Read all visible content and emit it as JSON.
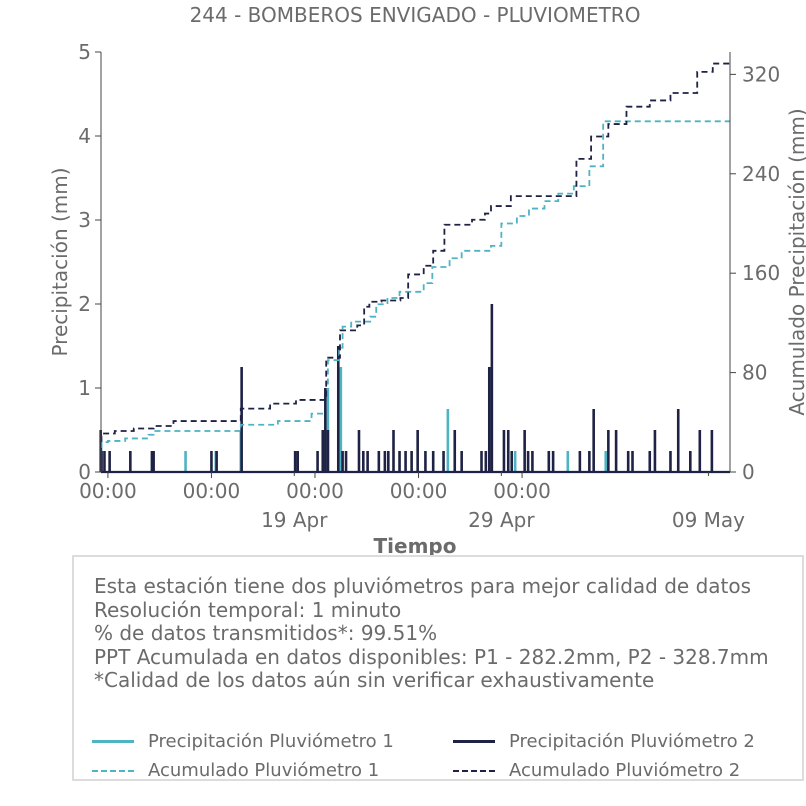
{
  "chart_data": {
    "type": "bar",
    "title": "244 - BOMBEROS ENVIGADO - PLUVIOMETRO",
    "xlabel": "Tiempo",
    "ylabel": "Precipitación (mm)",
    "y2label": "Acumulado Precipitación (mm)",
    "ylim": [
      0,
      5
    ],
    "y2lim": [
      0,
      338
    ],
    "yticks": [
      0,
      1,
      2,
      3,
      4,
      5
    ],
    "y2ticks": [
      0,
      80,
      160,
      240,
      320
    ],
    "xlim": [
      "2024-04-09T16:00",
      "2024-05-10T01:00"
    ],
    "xticks_major": [
      {
        "x": "2024-04-10T00:00",
        "label": "00:00"
      },
      {
        "x": "2024-04-15T00:00",
        "label": "00:00"
      },
      {
        "x": "2024-04-20T00:00",
        "label": "00:00"
      },
      {
        "x": "2024-04-25T00:00",
        "label": "00:00"
      },
      {
        "x": "2024-04-30T00:00",
        "label": "00:00"
      }
    ],
    "xticks_minor": [
      {
        "x": "2024-04-19T00:00",
        "label": "19 Apr"
      },
      {
        "x": "2024-04-29T00:00",
        "label": "29 Apr"
      },
      {
        "x": "2024-05-09T00:00",
        "label": "09 May"
      }
    ],
    "legend_position": "bottom",
    "grid": false,
    "colors": {
      "p1": "#4eb3c2",
      "p2": "#1f2244"
    },
    "series": [
      {
        "name": "Precipitación Pluviómetro 1",
        "kind": "bar",
        "points": [
          [
            "2024-04-09T16:10",
            0.4
          ],
          [
            "2024-04-13T18:00",
            0.25
          ],
          [
            "2024-04-15T05:00",
            0.25
          ],
          [
            "2024-04-16T10:00",
            0.5
          ],
          [
            "2024-04-20T15:00",
            1.0
          ],
          [
            "2024-04-21T06:00",
            1.25
          ],
          [
            "2024-04-26T10:00",
            0.75
          ],
          [
            "2024-04-29T16:00",
            0.25
          ],
          [
            "2024-05-02T05:00",
            0.25
          ],
          [
            "2024-05-04T01:00",
            0.25
          ]
        ]
      },
      {
        "name": "Precipitación Pluviómetro 2",
        "kind": "bar",
        "points": [
          [
            "2024-04-09T15:40",
            0.5
          ],
          [
            "2024-04-09T16:40",
            0.25
          ],
          [
            "2024-04-09T20:00",
            0.25
          ],
          [
            "2024-04-10T02:00",
            0.25
          ],
          [
            "2024-04-11T02:00",
            0.25
          ],
          [
            "2024-04-12T03:00",
            0.25
          ],
          [
            "2024-04-12T05:00",
            0.25
          ],
          [
            "2024-04-15T00:00",
            0.25
          ],
          [
            "2024-04-15T06:00",
            0.25
          ],
          [
            "2024-04-16T11:00",
            1.25
          ],
          [
            "2024-04-19T01:00",
            0.25
          ],
          [
            "2024-04-19T04:00",
            0.25
          ],
          [
            "2024-04-20T03:00",
            0.25
          ],
          [
            "2024-04-20T09:00",
            0.5
          ],
          [
            "2024-04-20T12:00",
            1.0
          ],
          [
            "2024-04-20T15:00",
            0.5
          ],
          [
            "2024-04-21T03:00",
            1.5
          ],
          [
            "2024-04-21T08:00",
            0.25
          ],
          [
            "2024-04-21T12:00",
            0.25
          ],
          [
            "2024-04-22T03:00",
            0.5
          ],
          [
            "2024-04-22T08:00",
            0.25
          ],
          [
            "2024-04-22T13:00",
            0.25
          ],
          [
            "2024-04-23T02:00",
            0.25
          ],
          [
            "2024-04-23T09:00",
            0.25
          ],
          [
            "2024-04-23T13:00",
            0.25
          ],
          [
            "2024-04-23T19:00",
            0.5
          ],
          [
            "2024-04-24T02:00",
            0.25
          ],
          [
            "2024-04-24T09:00",
            0.25
          ],
          [
            "2024-04-24T16:00",
            0.25
          ],
          [
            "2024-04-24T23:00",
            0.5
          ],
          [
            "2024-04-25T08:00",
            0.25
          ],
          [
            "2024-04-25T17:00",
            0.25
          ],
          [
            "2024-04-26T05:00",
            0.25
          ],
          [
            "2024-04-26T18:00",
            0.5
          ],
          [
            "2024-04-27T02:00",
            0.25
          ],
          [
            "2024-04-28T01:00",
            0.25
          ],
          [
            "2024-04-28T06:00",
            0.25
          ],
          [
            "2024-04-28T10:00",
            1.25
          ],
          [
            "2024-04-28T13:00",
            2.0
          ],
          [
            "2024-04-29T03:00",
            0.5
          ],
          [
            "2024-04-29T08:00",
            0.5
          ],
          [
            "2024-04-29T12:00",
            0.25
          ],
          [
            "2024-04-30T03:00",
            0.5
          ],
          [
            "2024-04-30T07:00",
            0.25
          ],
          [
            "2024-04-30T12:00",
            0.25
          ],
          [
            "2024-05-01T07:00",
            0.25
          ],
          [
            "2024-05-01T12:00",
            0.25
          ],
          [
            "2024-05-02T19:00",
            0.25
          ],
          [
            "2024-05-03T06:00",
            0.25
          ],
          [
            "2024-05-03T11:00",
            0.75
          ],
          [
            "2024-05-04T04:00",
            0.5
          ],
          [
            "2024-05-04T13:00",
            0.5
          ],
          [
            "2024-05-05T03:00",
            0.25
          ],
          [
            "2024-05-05T08:00",
            0.25
          ],
          [
            "2024-05-06T04:00",
            0.25
          ],
          [
            "2024-05-06T10:00",
            0.5
          ],
          [
            "2024-05-07T04:00",
            0.25
          ],
          [
            "2024-05-07T13:00",
            0.75
          ],
          [
            "2024-05-08T03:00",
            0.25
          ],
          [
            "2024-05-08T14:00",
            0.5
          ],
          [
            "2024-05-09T04:00",
            0.5
          ]
        ]
      },
      {
        "name": "Acumulado Pluviómetro 1",
        "kind": "step",
        "points": [
          [
            "2024-04-09T15:30",
            20
          ],
          [
            "2024-04-09T16:30",
            24
          ],
          [
            "2024-04-10T00:00",
            25
          ],
          [
            "2024-04-10T20:00",
            27
          ],
          [
            "2024-04-11T23:00",
            30
          ],
          [
            "2024-04-12T05:00",
            33
          ],
          [
            "2024-04-14T00:00",
            33
          ],
          [
            "2024-04-16T00:00",
            33
          ],
          [
            "2024-04-16T10:00",
            38
          ],
          [
            "2024-04-18T03:00",
            38
          ],
          [
            "2024-04-18T05:00",
            41
          ],
          [
            "2024-04-19T16:00",
            41
          ],
          [
            "2024-04-19T20:00",
            47
          ],
          [
            "2024-04-20T15:00",
            90
          ],
          [
            "2024-04-21T04:00",
            100
          ],
          [
            "2024-04-21T08:00",
            117
          ],
          [
            "2024-04-21T18:00",
            121
          ],
          [
            "2024-04-22T16:00",
            125
          ],
          [
            "2024-04-22T23:00",
            135
          ],
          [
            "2024-04-23T12:00",
            140
          ],
          [
            "2024-04-24T02:00",
            145
          ],
          [
            "2024-04-25T06:00",
            152
          ],
          [
            "2024-04-25T16:00",
            165
          ],
          [
            "2024-04-26T12:00",
            172
          ],
          [
            "2024-04-27T02:00",
            178
          ],
          [
            "2024-04-28T12:00",
            182
          ],
          [
            "2024-04-29T00:00",
            200
          ],
          [
            "2024-04-29T18:00",
            206
          ],
          [
            "2024-04-30T08:00",
            212
          ],
          [
            "2024-05-01T02:00",
            218
          ],
          [
            "2024-05-01T18:00",
            224
          ],
          [
            "2024-05-02T12:00",
            230
          ],
          [
            "2024-05-03T06:00",
            246
          ],
          [
            "2024-05-03T22:00",
            282.2
          ]
        ]
      },
      {
        "name": "Acumulado Pluviómetro 2",
        "kind": "step",
        "points": [
          [
            "2024-04-09T15:30",
            25
          ],
          [
            "2024-04-09T16:30",
            31
          ],
          [
            "2024-04-10T08:00",
            33
          ],
          [
            "2024-04-11T06:00",
            35
          ],
          [
            "2024-04-12T05:00",
            37
          ],
          [
            "2024-04-13T04:00",
            41
          ],
          [
            "2024-04-15T10:00",
            41
          ],
          [
            "2024-04-16T00:00",
            41
          ],
          [
            "2024-04-16T10:00",
            51
          ],
          [
            "2024-04-17T20:00",
            55
          ],
          [
            "2024-04-19T02:00",
            58
          ],
          [
            "2024-04-20T13:00",
            92
          ],
          [
            "2024-04-21T05:00",
            114
          ],
          [
            "2024-04-22T01:00",
            118
          ],
          [
            "2024-04-22T09:00",
            133
          ],
          [
            "2024-04-22T15:00",
            137
          ],
          [
            "2024-04-23T05:00",
            138
          ],
          [
            "2024-04-24T03:00",
            140
          ],
          [
            "2024-04-24T12:00",
            159
          ],
          [
            "2024-04-25T06:00",
            166
          ],
          [
            "2024-04-25T17:00",
            178
          ],
          [
            "2024-04-26T06:00",
            199
          ],
          [
            "2024-04-27T14:00",
            203
          ],
          [
            "2024-04-28T05:00",
            208
          ],
          [
            "2024-04-28T12:00",
            214
          ],
          [
            "2024-04-29T11:00",
            222
          ],
          [
            "2024-05-02T15:00",
            252
          ],
          [
            "2024-05-03T08:00",
            270
          ],
          [
            "2024-05-04T04:00",
            280
          ],
          [
            "2024-05-05T01:00",
            294
          ],
          [
            "2024-05-06T04:00",
            299
          ],
          [
            "2024-05-07T04:00",
            305
          ],
          [
            "2024-05-08T11:00",
            322
          ],
          [
            "2024-05-09T05:00",
            328.7
          ]
        ]
      }
    ]
  },
  "info_box": {
    "lines": [
      "Esta estación tiene dos pluviómetros para mejor calidad de datos",
      "Resolución temporal: 1 minuto",
      "% de datos transmitidos*: 99.51%",
      "PPT Acumulada en datos disponibles: P1 - 282.2mm, P2 - 328.7mm",
      "*Calidad de los datos aún sin verificar exhaustivamente"
    ]
  }
}
